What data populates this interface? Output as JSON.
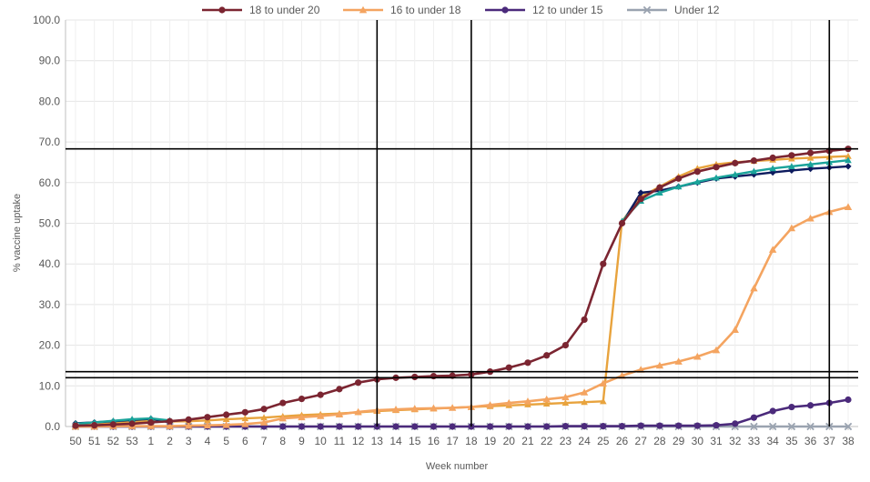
{
  "chart_data": {
    "type": "line",
    "title": "",
    "xlabel": "Week number",
    "ylabel": "% vaccine uptake",
    "ylim": [
      0,
      100
    ],
    "yticks": [
      "0.0",
      "10.0",
      "20.0",
      "30.0",
      "40.0",
      "50.0",
      "60.0",
      "70.0",
      "80.0",
      "90.0",
      "100.0"
    ],
    "categories": [
      "50",
      "51",
      "52",
      "53",
      "1",
      "2",
      "3",
      "4",
      "5",
      "6",
      "7",
      "8",
      "9",
      "10",
      "11",
      "12",
      "13",
      "14",
      "15",
      "16",
      "17",
      "18",
      "19",
      "20",
      "21",
      "22",
      "23",
      "24",
      "25",
      "26",
      "27",
      "28",
      "29",
      "30",
      "31",
      "32",
      "33",
      "34",
      "35",
      "36",
      "37",
      "38"
    ],
    "legend_position": "top",
    "series": [
      {
        "name": "18 to under 20",
        "color": "#7b2531",
        "marker": "circle",
        "values": [
          0.2,
          0.3,
          0.5,
          0.7,
          1.0,
          1.3,
          1.7,
          2.3,
          2.9,
          3.5,
          4.3,
          5.8,
          6.8,
          7.8,
          9.2,
          10.8,
          11.6,
          12.0,
          12.2,
          12.4,
          12.5,
          12.8,
          13.5,
          14.5,
          15.7,
          17.5,
          20.0,
          26.3,
          40.0,
          50.0,
          56.0,
          58.8,
          61.0,
          62.7,
          63.8,
          64.8,
          65.4,
          66.1,
          66.7,
          67.3,
          67.8,
          68.3
        ]
      },
      {
        "name": "16 to under 18",
        "color": "#f4a460",
        "marker": "triangle",
        "values": [
          0.0,
          0.0,
          0.1,
          0.1,
          0.1,
          0.1,
          0.2,
          0.3,
          0.4,
          0.6,
          1.0,
          2.0,
          2.3,
          2.6,
          3.0,
          3.6,
          4.0,
          4.2,
          4.4,
          4.5,
          4.6,
          4.8,
          5.3,
          5.8,
          6.2,
          6.7,
          7.2,
          8.4,
          10.6,
          12.5,
          14.0,
          15.0,
          16.0,
          17.2,
          18.8,
          23.8,
          34.0,
          43.5,
          48.8,
          51.2,
          52.8,
          54.0
        ]
      },
      {
        "name": "12 to under 15",
        "color": "#4b2a7b",
        "marker": "circle",
        "values": [
          0.0,
          0.0,
          0.0,
          0.0,
          0.0,
          0.0,
          0.0,
          0.0,
          0.0,
          0.0,
          0.0,
          0.0,
          0.0,
          0.0,
          0.0,
          0.0,
          0.0,
          0.0,
          0.0,
          0.0,
          0.0,
          0.0,
          0.0,
          0.0,
          0.0,
          0.0,
          0.1,
          0.1,
          0.1,
          0.1,
          0.2,
          0.2,
          0.2,
          0.2,
          0.3,
          0.7,
          2.2,
          3.8,
          4.8,
          5.2,
          5.8,
          6.6
        ]
      },
      {
        "name": "Under 12",
        "color": "#9aa3b0",
        "marker": "x",
        "values": [
          0.0,
          0.0,
          0.0,
          0.0,
          0.0,
          0.0,
          0.0,
          0.0,
          0.0,
          0.0,
          0.0,
          0.0,
          0.0,
          0.0,
          0.0,
          0.0,
          0.0,
          0.0,
          0.0,
          0.0,
          0.0,
          0.0,
          0.0,
          0.0,
          0.0,
          0.0,
          0.0,
          0.0,
          0.0,
          0.0,
          0.0,
          0.0,
          0.0,
          0.0,
          0.0,
          0.0,
          0.0,
          0.0,
          0.0,
          0.0,
          0.0,
          0.0
        ]
      }
    ],
    "background_series": [
      {
        "color": "#e8a33d",
        "marker": "triangle",
        "values": [
          0.3,
          0.5,
          0.8,
          1.1,
          1.4,
          1.2,
          1.3,
          1.5,
          1.8,
          2.0,
          2.2,
          2.5,
          2.8,
          3.0,
          3.2,
          3.5,
          3.8,
          4.0,
          4.2,
          4.4,
          4.6,
          4.8,
          5.0,
          5.2,
          5.4,
          5.6,
          5.8,
          6.0,
          6.2,
          50.5,
          56.5,
          59.0,
          61.5,
          63.5,
          64.5,
          65.0,
          65.3,
          65.6,
          65.9,
          66.1,
          66.3,
          66.5
        ]
      },
      {
        "color": "#0d1b5e",
        "marker": "diamond",
        "values": [
          0.8,
          1.0,
          1.3,
          1.6,
          1.9,
          1.0,
          null,
          null,
          null,
          null,
          null,
          null,
          null,
          null,
          null,
          null,
          null,
          null,
          null,
          null,
          null,
          null,
          null,
          null,
          null,
          null,
          null,
          null,
          null,
          50.0,
          57.5,
          58.0,
          59.0,
          60.0,
          61.0,
          61.5,
          62.0,
          62.5,
          63.0,
          63.4,
          63.7,
          64.0
        ]
      },
      {
        "color": "#1aa39a",
        "marker": "triangle",
        "values": [
          0.7,
          1.0,
          1.4,
          1.8,
          2.0,
          1.5,
          null,
          null,
          null,
          null,
          null,
          null,
          null,
          null,
          null,
          null,
          null,
          null,
          null,
          null,
          null,
          null,
          null,
          null,
          null,
          null,
          null,
          null,
          null,
          50.5,
          55.5,
          57.5,
          59.0,
          60.2,
          61.2,
          62.0,
          62.8,
          63.5,
          64.0,
          64.5,
          65.0,
          65.5
        ]
      }
    ],
    "reference_lines": {
      "horizontal": [
        68.3,
        13.5,
        12.0
      ],
      "vertical_categories": [
        "13",
        "18",
        "37"
      ]
    }
  }
}
